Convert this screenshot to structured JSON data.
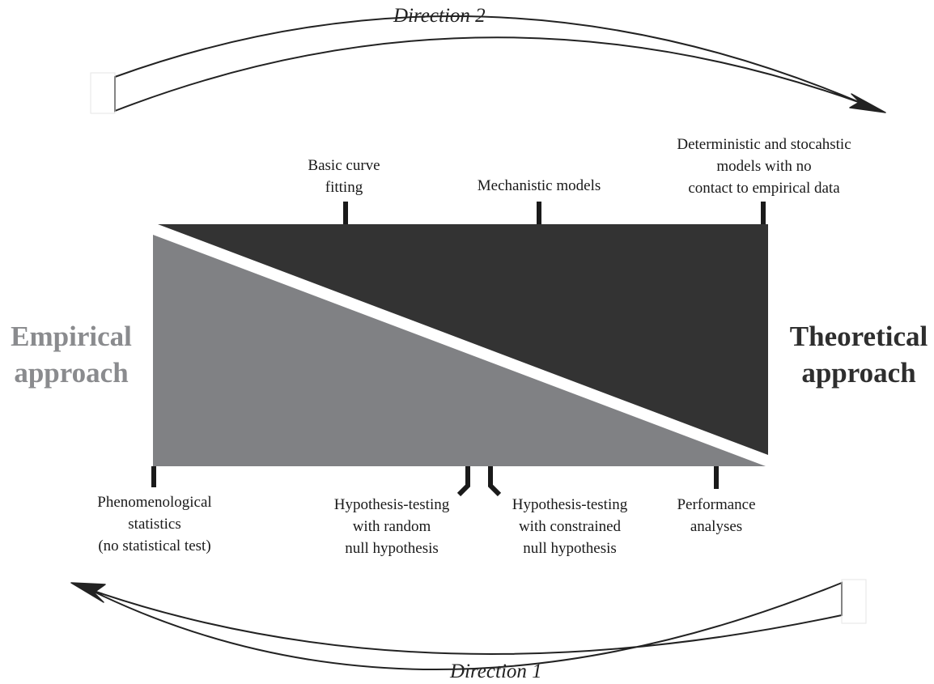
{
  "colors": {
    "theoretical": "#333333",
    "empirical": "#808184",
    "tick": "#1a1a1a",
    "empirical_text": "#8a8b8e",
    "theoretical_text": "#2e2e2e"
  },
  "directions": {
    "top": "Direction 2",
    "bottom": "Direction 1"
  },
  "approaches": {
    "empirical": [
      "Empirical",
      "approach"
    ],
    "theoretical": [
      "Theoretical",
      "approach"
    ]
  },
  "top_labels": [
    {
      "lines": [
        "Basic curve",
        "fitting"
      ]
    },
    {
      "lines": [
        "Mechanistic models"
      ]
    },
    {
      "lines": [
        "Deterministic and stocahstic",
        "models with no",
        "contact to empirical data"
      ]
    }
  ],
  "bottom_labels": [
    {
      "lines": [
        "Phenomenological",
        "statistics",
        "(no statistical test)"
      ]
    },
    {
      "lines": [
        "Hypothesis-testing",
        "with random",
        "null hypothesis"
      ]
    },
    {
      "lines": [
        "Hypothesis-testing",
        "with constrained",
        "null hypothesis"
      ]
    },
    {
      "lines": [
        "Performance",
        "analyses"
      ]
    }
  ]
}
